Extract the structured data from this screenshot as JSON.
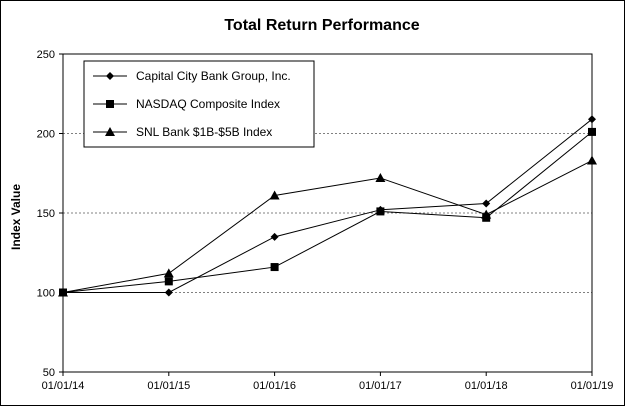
{
  "chart_data": {
    "type": "line",
    "title": "Total Return Performance",
    "xlabel": "",
    "ylabel": "Index Value",
    "categories": [
      "01/01/14",
      "01/01/15",
      "01/01/16",
      "01/01/17",
      "01/01/18",
      "01/01/19"
    ],
    "y_ticks": [
      50,
      100,
      150,
      200,
      250
    ],
    "ylim": [
      50,
      250
    ],
    "grid": "horizontal dashed",
    "legend_position": "top-left",
    "series": [
      {
        "name": "Capital City Bank Group, Inc.",
        "marker": "diamond",
        "values": [
          100,
          100,
          135,
          152,
          156,
          209
        ]
      },
      {
        "name": "NASDAQ Composite Index",
        "marker": "square",
        "values": [
          100,
          107,
          116,
          151,
          147,
          201
        ]
      },
      {
        "name": "SNL Bank $1B-$5B Index",
        "marker": "triangle",
        "values": [
          100,
          112,
          161,
          172,
          149,
          183
        ]
      }
    ],
    "colors": {
      "line": "#000000",
      "grid": "#808080",
      "background": "#ffffff"
    }
  }
}
